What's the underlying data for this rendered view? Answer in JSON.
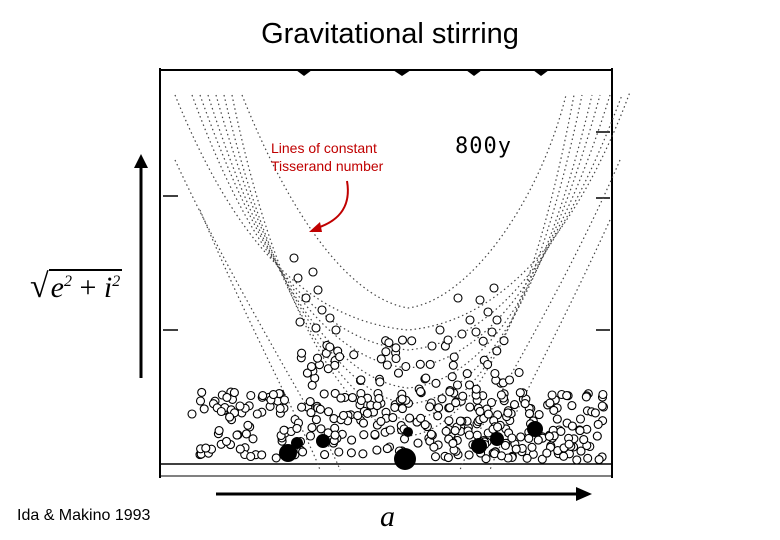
{
  "title": "Gravitational stirring",
  "annotation": {
    "line1": "Lines of constant",
    "line2": "Tisserand number"
  },
  "time_label": "800y",
  "credit": "Ida & Makino 1993",
  "x_axis_symbol": "a",
  "y_axis_symbol": {
    "base_e": "e",
    "base_i": "i",
    "exp": "2",
    "plus": "+"
  },
  "colors": {
    "annotation": "#c00000",
    "ink": "#000000"
  },
  "icons": [
    "up-arrow-icon",
    "right-arrow-icon",
    "red-curved-arrow-icon"
  ]
}
